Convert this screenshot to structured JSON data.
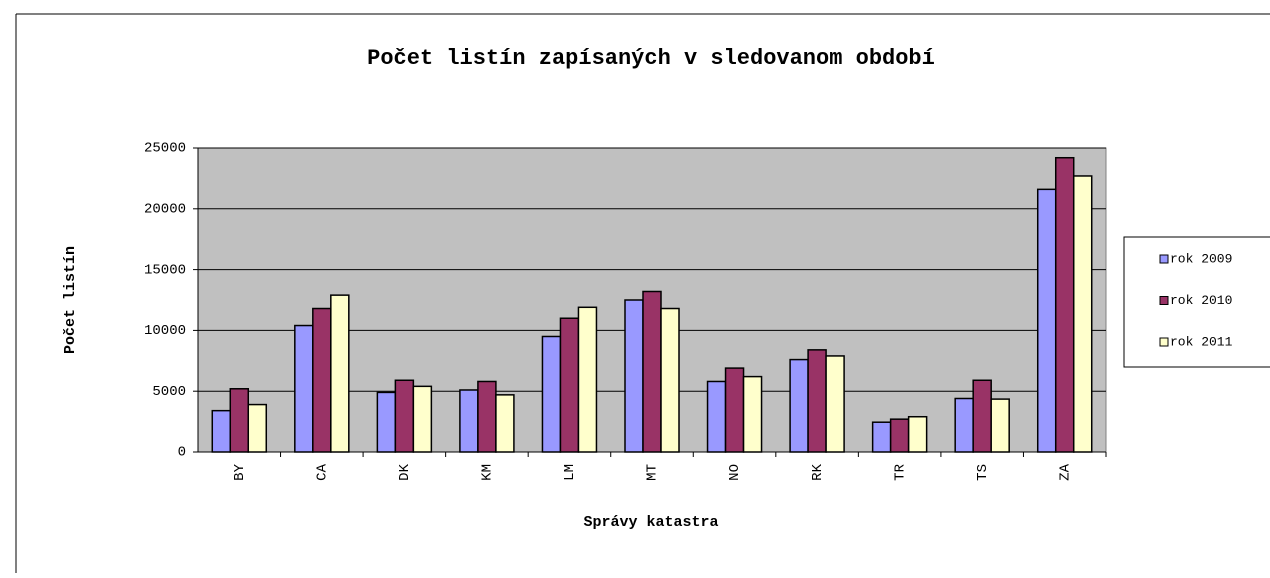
{
  "chart_data": {
    "type": "bar",
    "title": "Počet listín zapísaných v sledovanom období",
    "x_label": "Správy katastra",
    "y_label": "Počet listín",
    "categories": [
      "BY",
      "CA",
      "DK",
      "KM",
      "LM",
      "MT",
      "NO",
      "RK",
      "TR",
      "TS",
      "ZA"
    ],
    "series": [
      {
        "name": "rok 2009",
        "color": "#9999ff",
        "values": [
          3400,
          10400,
          4900,
          5100,
          9500,
          12500,
          5800,
          7600,
          2450,
          4400,
          21600
        ]
      },
      {
        "name": "rok 2010",
        "color": "#993366",
        "values": [
          5200,
          11800,
          5900,
          5800,
          11000,
          13200,
          6900,
          8400,
          2700,
          5900,
          24200
        ]
      },
      {
        "name": "rok 2011",
        "color": "#ffffcc",
        "values": [
          3900,
          12900,
          5400,
          4700,
          11900,
          11800,
          6200,
          7900,
          2900,
          4350,
          22700
        ]
      }
    ],
    "ylim": [
      0,
      25000
    ],
    "yticks": [
      0,
      5000,
      10000,
      15000,
      20000,
      25000
    ],
    "grid": true,
    "legend": "right"
  }
}
